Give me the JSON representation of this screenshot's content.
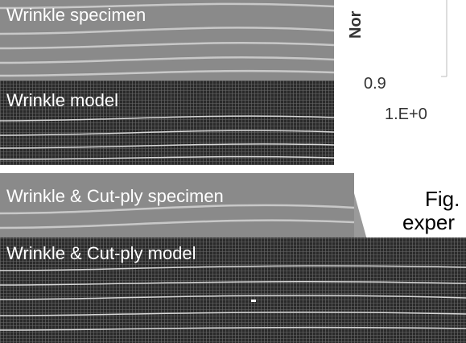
{
  "panels": [
    {
      "label": "Wrinkle specimen"
    },
    {
      "label": "Wrinkle model"
    },
    {
      "label": "Wrinkle & Cut-ply specimen"
    },
    {
      "label": "Wrinkle & Cut-ply model"
    }
  ],
  "chart_fragment": {
    "y_axis_label": "Nor",
    "y_tick": "0.9",
    "x_tick": "1.E+0"
  },
  "caption_fragment": [
    "Fig.",
    "exper"
  ]
}
